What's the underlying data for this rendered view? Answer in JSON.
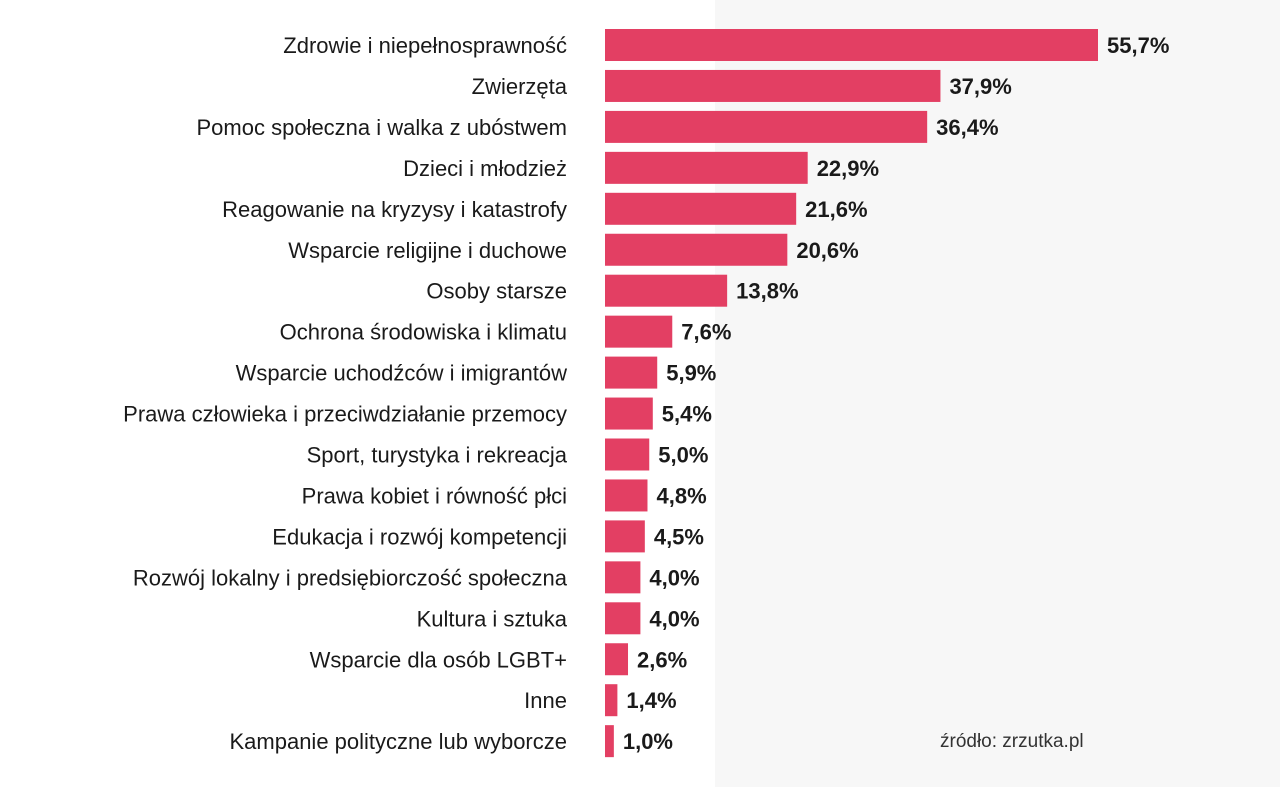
{
  "colors": {
    "bar": "#e33f63",
    "text": "#1a1a1a",
    "panel": "#ffffff",
    "background": "#f7f7f7"
  },
  "source": "źródło: zrzutka.pl",
  "chart_data": {
    "type": "bar",
    "orientation": "horizontal",
    "title": "",
    "xlabel": "",
    "ylabel": "",
    "xlim": [
      0,
      55.7
    ],
    "grid": false,
    "categories": [
      "Zdrowie i niepełnosprawność",
      "Zwierzęta",
      "Pomoc społeczna i walka z ubóstwem",
      "Dzieci i młodzież",
      "Reagowanie na kryzysy i katastrofy",
      "Wsparcie religijne i duchowe",
      "Osoby starsze",
      "Ochrona środowiska i klimatu",
      "Wsparcie uchodźców i imigrantów",
      "Prawa człowieka i przeciwdziałanie przemocy",
      "Sport, turystyka i rekreacja",
      "Prawa kobiet i równość płci",
      "Edukacja i rozwój kompetencji",
      "Rozwój lokalny i predsiębiorczość społeczna",
      "Kultura i sztuka",
      "Wsparcie dla osób LGBT+",
      "Inne",
      "Kampanie polityczne lub wyborcze"
    ],
    "values": [
      55.7,
      37.9,
      36.4,
      22.9,
      21.6,
      20.6,
      13.8,
      7.6,
      5.9,
      5.4,
      5.0,
      4.8,
      4.5,
      4.0,
      4.0,
      2.6,
      1.4,
      1.0
    ],
    "value_labels": [
      "55,7%",
      "37,9%",
      "36,4%",
      "22,9%",
      "21,6%",
      "20,6%",
      "13,8%",
      "7,6%",
      "5,9%",
      "5,4%",
      "5,0%",
      "4,8%",
      "4,5%",
      "4,0%",
      "4,0%",
      "2,6%",
      "1,4%",
      "1,0%"
    ]
  }
}
